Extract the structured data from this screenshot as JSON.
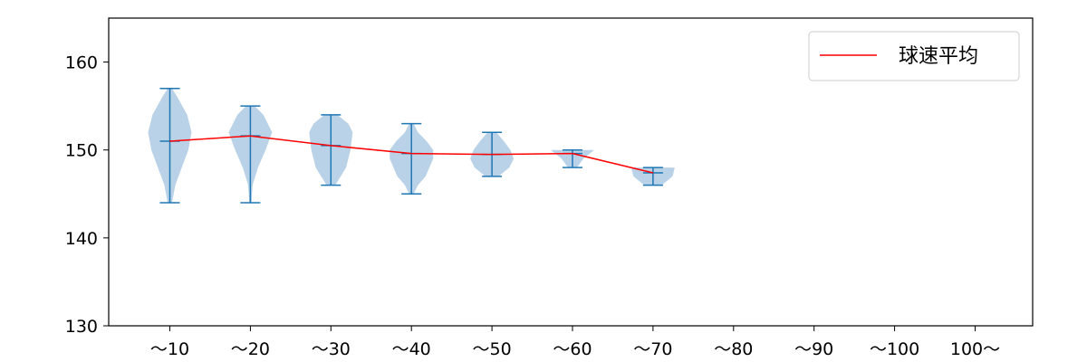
{
  "chart_data": {
    "type": "violin",
    "categories": [
      "～10",
      "～20",
      "～30",
      "～40",
      "～50",
      "～60",
      "～70",
      "～80",
      "～90",
      "～100",
      "100～"
    ],
    "ylim": [
      130,
      165
    ],
    "yticks": [
      130,
      140,
      150,
      160
    ],
    "grid": false,
    "legend": {
      "placement": "top-right",
      "entries": [
        "球速平均"
      ]
    },
    "colors": {
      "violin": "#b5d0e6",
      "whisker": "#1f77b4",
      "mean_line": "#ff0000",
      "axis": "#000000"
    },
    "series": [
      {
        "name": "球速平均",
        "type": "line",
        "values": [
          151.0,
          151.6,
          150.5,
          149.6,
          149.5,
          149.6,
          147.4,
          null,
          null,
          null,
          null
        ]
      }
    ],
    "violins": [
      {
        "min": 144,
        "max": 157,
        "mean": 151.0,
        "profile": [
          [
            144,
            0.1
          ],
          [
            146,
            0.25
          ],
          [
            148,
            0.55
          ],
          [
            150,
            0.85
          ],
          [
            152,
            1.0
          ],
          [
            154,
            0.8
          ],
          [
            156,
            0.35
          ],
          [
            157,
            0.1
          ]
        ]
      },
      {
        "min": 144,
        "max": 155,
        "mean": 151.6,
        "profile": [
          [
            144,
            0.05
          ],
          [
            146,
            0.1
          ],
          [
            148,
            0.35
          ],
          [
            150,
            0.7
          ],
          [
            152,
            1.0
          ],
          [
            154,
            0.6
          ],
          [
            155,
            0.2
          ]
        ]
      },
      {
        "min": 146,
        "max": 154,
        "mean": 150.5,
        "profile": [
          [
            146,
            0.2
          ],
          [
            147,
            0.45
          ],
          [
            148,
            0.7
          ],
          [
            150,
            0.9
          ],
          [
            152,
            1.0
          ],
          [
            153,
            0.8
          ],
          [
            154,
            0.3
          ]
        ]
      },
      {
        "min": 145,
        "max": 153,
        "mean": 149.6,
        "profile": [
          [
            145,
            0.1
          ],
          [
            146,
            0.3
          ],
          [
            147,
            0.65
          ],
          [
            149,
            1.0
          ],
          [
            150,
            1.0
          ],
          [
            151,
            0.7
          ],
          [
            152,
            0.3
          ],
          [
            153,
            0.1
          ]
        ]
      },
      {
        "min": 147,
        "max": 152,
        "mean": 149.5,
        "profile": [
          [
            147,
            0.3
          ],
          [
            148,
            0.8
          ],
          [
            149,
            1.0
          ],
          [
            150,
            0.85
          ],
          [
            151,
            0.55
          ],
          [
            152,
            0.2
          ]
        ]
      },
      {
        "min": 148,
        "max": 150,
        "mean": 149.6,
        "profile": [
          [
            148,
            0.2
          ],
          [
            149,
            0.5
          ],
          [
            150,
            1.0
          ]
        ]
      },
      {
        "min": 146,
        "max": 148,
        "mean": 147.4,
        "profile": [
          [
            146,
            0.4
          ],
          [
            147,
            0.9
          ],
          [
            148,
            1.0
          ]
        ]
      }
    ]
  }
}
